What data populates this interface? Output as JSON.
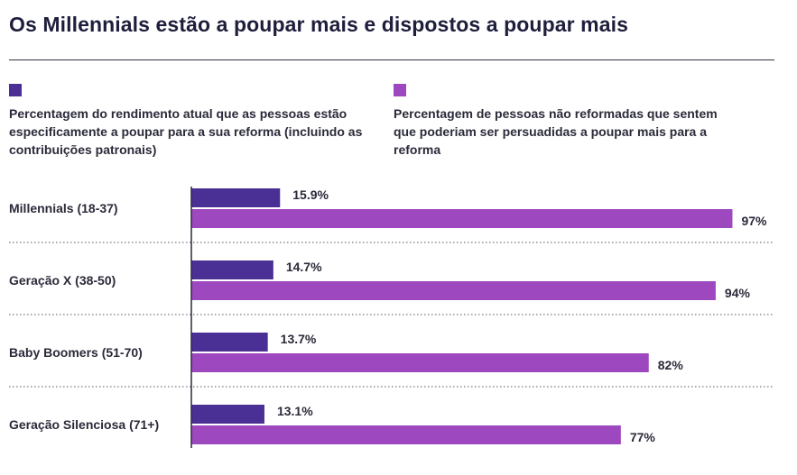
{
  "title": "Os Millennials estão a poupar mais e dispostos a poupar mais",
  "colors": {
    "series1": "#4a2f95",
    "series2": "#9e48c0",
    "text": "#2a2a3a",
    "title": "#1e1e3c"
  },
  "legend": [
    {
      "text": "Percentagem do rendimento atual que as pessoas estão especificamente a poupar para a sua reforma (incluindo as contribuições patronais)"
    },
    {
      "text": "Percentagem de pessoas não reformadas que sentem que poderiam ser persuadidas a poupar mais para a reforma"
    }
  ],
  "chart_data": {
    "type": "bar",
    "orientation": "horizontal",
    "categories": [
      "Millennials (18-37)",
      "Geração X (38-50)",
      "Baby Boomers (51-70)",
      "Geração Silenciosa (71+)"
    ],
    "series": [
      {
        "name": "Percentagem do rendimento atual que as pessoas estão especificamente a poupar para a sua reforma (incluindo as contribuições patronais)",
        "values": [
          15.9,
          14.7,
          13.7,
          13.1
        ],
        "labels": [
          "15.9%",
          "14.7%",
          "13.7%",
          "13.1%"
        ]
      },
      {
        "name": "Percentagem de pessoas não reformadas que sentem que poderiam ser persuadidas a poupar mais para a reforma",
        "values": [
          97,
          94,
          82,
          77
        ],
        "labels": [
          "97%",
          "94%",
          "82%",
          "77%"
        ]
      }
    ],
    "xlim": [
      0,
      100
    ],
    "grid": false,
    "legend_position": "top"
  }
}
